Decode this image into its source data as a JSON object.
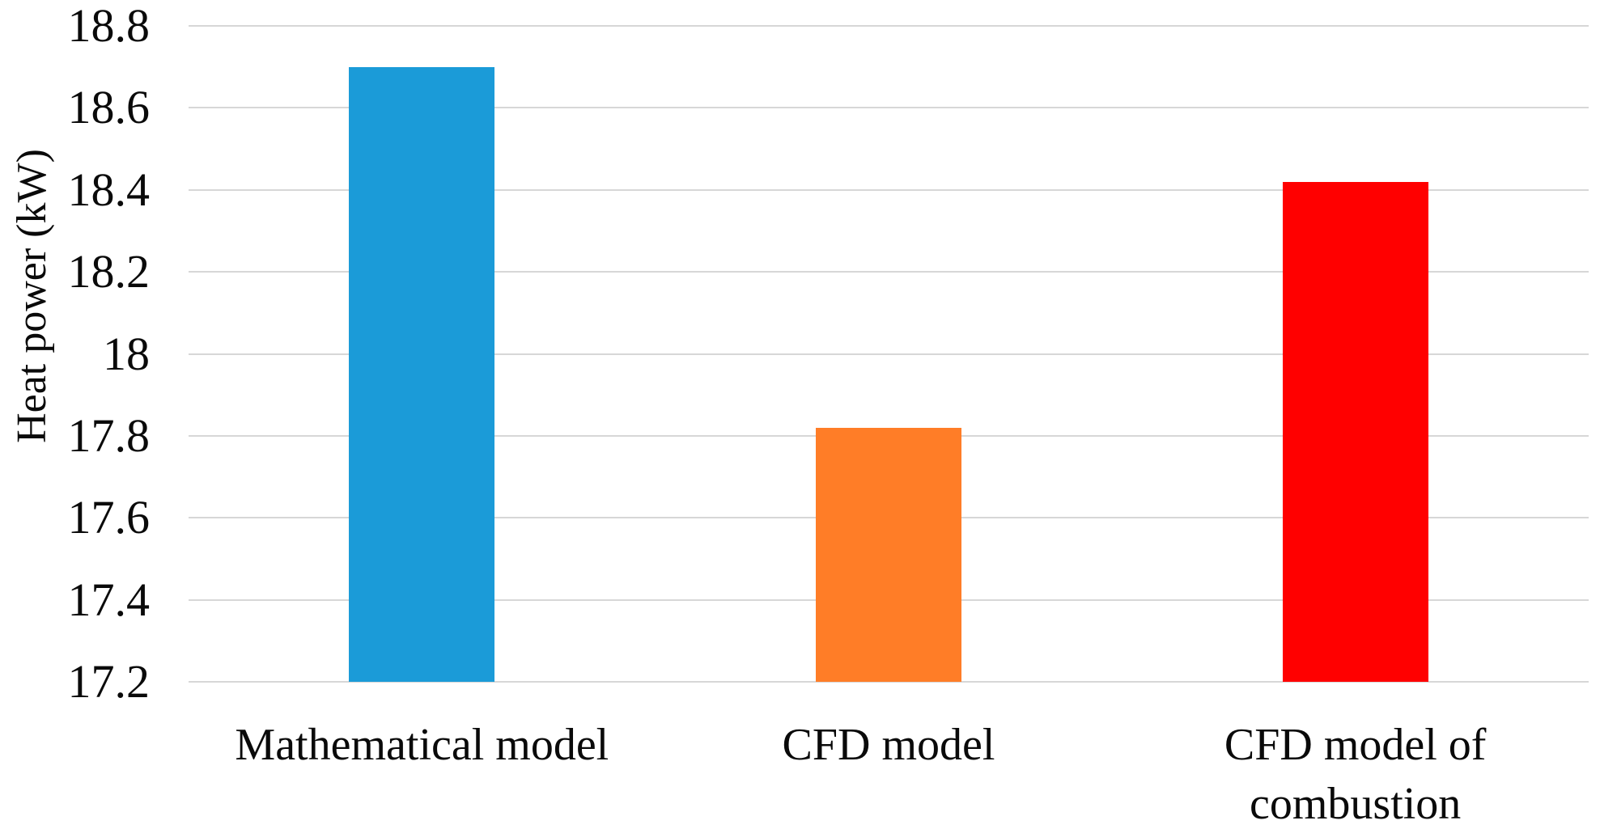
{
  "chart_data": {
    "type": "bar",
    "title": "",
    "ylabel": "Heat power (kW)",
    "xlabel": "",
    "categories": [
      "Mathematical model",
      "CFD model",
      "CFD model of\ncombustion"
    ],
    "values": [
      18.7,
      17.82,
      18.42
    ],
    "bar_colors": [
      "#1B9BD8",
      "#FF7D27",
      "#FF0000"
    ],
    "ylim": [
      17.2,
      18.8
    ],
    "ytick_step": 0.2,
    "ytick_labels": [
      "17.2",
      "17.4",
      "17.6",
      "17.8",
      "18",
      "18.2",
      "18.4",
      "18.6",
      "18.8"
    ],
    "legend": "none",
    "grid": "horizontal",
    "gridline_color": "#D7D7D7",
    "axis_line_color": "#D7D7D7",
    "text_color": "#0A0A0A",
    "background_color": "#FFFFFF"
  }
}
